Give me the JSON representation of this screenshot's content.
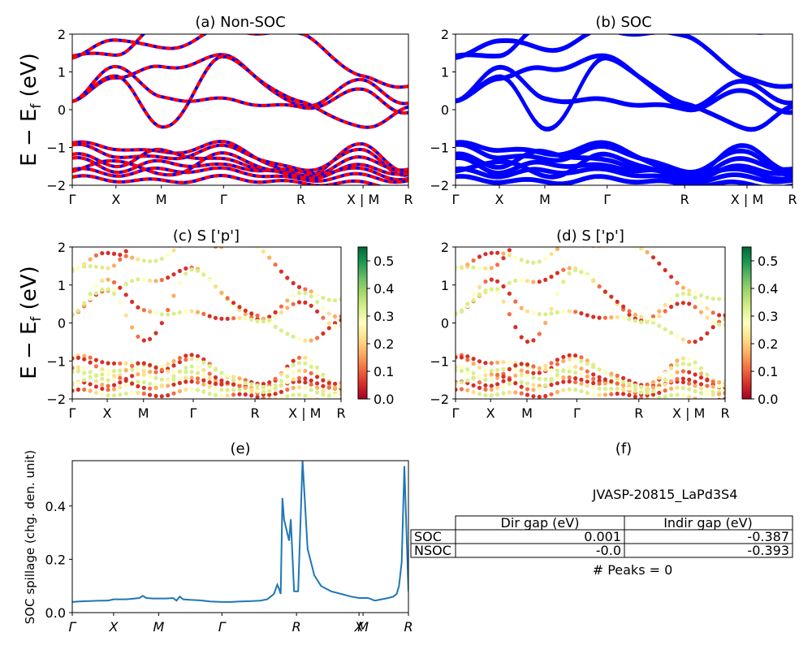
{
  "colors": {
    "nsoc_band": "#ff0000",
    "soc_band": "#0000ff",
    "dash_under": "#0000ff",
    "spillage_line": "#1f77b4",
    "axis": "#000000"
  },
  "ylabel_band": "E − E",
  "ylabel_band_sub": "f",
  "ylabel_band_unit": " (eV)",
  "kpath_labels": [
    "Γ",
    "X",
    "M",
    "Γ",
    "R",
    "X | M",
    "R"
  ],
  "chart_data": [
    {
      "id": "a",
      "type": "line",
      "title": "(a) Non-SOC",
      "ylim": [
        -2,
        2
      ],
      "yticks": [
        "−2",
        "−1",
        "0",
        "1",
        "2"
      ],
      "xticks": [
        "Γ",
        "X",
        "M",
        "Γ",
        "R",
        "X | M",
        "R"
      ],
      "series_color": "#ff0000",
      "style": "dashed-red-over-blue"
    },
    {
      "id": "b",
      "type": "line",
      "title": "(b) SOC",
      "ylim": [
        -2,
        2
      ],
      "yticks": [
        "−2",
        "−1",
        "0",
        "1",
        "2"
      ],
      "xticks": [
        "Γ",
        "X",
        "M",
        "Γ",
        "R",
        "X | M",
        "R"
      ],
      "series_color": "#0000ff",
      "style": "solid"
    },
    {
      "id": "c",
      "type": "scatter",
      "title": "(c)  S ['p']",
      "ylim": [
        -2,
        2
      ],
      "yticks": [
        "−2",
        "−1",
        "0",
        "1",
        "2"
      ],
      "xticks": [
        "Γ",
        "X",
        "M",
        "Γ",
        "R",
        "X | M",
        "R"
      ],
      "colorbar": {
        "range": [
          0.0,
          0.55
        ],
        "ticks": [
          "0.0",
          "0.1",
          "0.2",
          "0.3",
          "0.4",
          "0.5"
        ],
        "colormap": "RdYlGn"
      }
    },
    {
      "id": "d",
      "type": "scatter",
      "title": "(d) S ['p']",
      "ylim": [
        -2,
        2
      ],
      "yticks": [
        "−2",
        "−1",
        "0",
        "1",
        "2"
      ],
      "xticks": [
        "Γ",
        "X",
        "M",
        "Γ",
        "R",
        "X | M",
        "R"
      ],
      "colorbar": {
        "range": [
          0.0,
          0.55
        ],
        "ticks": [
          "0.0",
          "0.1",
          "0.2",
          "0.3",
          "0.4",
          "0.5"
        ],
        "colormap": "RdYlGn"
      }
    },
    {
      "id": "e",
      "type": "line",
      "title": "(e)",
      "ylabel": "SOC spillage (chg. den. unit)",
      "ylim": [
        0,
        0.57
      ],
      "yticks": [
        "0.0",
        "0.2",
        "0.4"
      ],
      "xticks": [
        "Γ",
        "X",
        "M",
        "Γ",
        "R",
        "X",
        "M",
        "R"
      ],
      "tick_positions": [
        0,
        0.123,
        0.257,
        0.445,
        0.667,
        0.853,
        0.865,
        1.0
      ],
      "x": [
        0,
        0.02,
        0.04,
        0.06,
        0.08,
        0.1,
        0.11,
        0.123,
        0.14,
        0.16,
        0.18,
        0.2,
        0.21,
        0.22,
        0.24,
        0.257,
        0.28,
        0.3,
        0.31,
        0.32,
        0.33,
        0.35,
        0.38,
        0.41,
        0.445,
        0.47,
        0.5,
        0.53,
        0.56,
        0.58,
        0.59,
        0.6,
        0.61,
        0.615,
        0.62,
        0.625,
        0.63,
        0.645,
        0.65,
        0.66,
        0.667,
        0.672,
        0.685,
        0.7,
        0.72,
        0.74,
        0.77,
        0.8,
        0.83,
        0.853,
        0.865,
        0.88,
        0.9,
        0.92,
        0.94,
        0.955,
        0.965,
        0.972,
        0.98,
        0.988,
        1.0
      ],
      "values": [
        0.04,
        0.042,
        0.043,
        0.044,
        0.045,
        0.045,
        0.046,
        0.05,
        0.05,
        0.05,
        0.052,
        0.055,
        0.063,
        0.055,
        0.053,
        0.053,
        0.053,
        0.055,
        0.045,
        0.06,
        0.05,
        0.048,
        0.046,
        0.042,
        0.04,
        0.04,
        0.042,
        0.043,
        0.045,
        0.05,
        0.06,
        0.07,
        0.105,
        0.09,
        0.07,
        0.43,
        0.35,
        0.27,
        0.35,
        0.08,
        0.08,
        0.08,
        0.57,
        0.24,
        0.14,
        0.1,
        0.08,
        0.07,
        0.06,
        0.055,
        0.055,
        0.055,
        0.045,
        0.05,
        0.055,
        0.06,
        0.07,
        0.1,
        0.19,
        0.55,
        0.08
      ]
    },
    {
      "id": "f",
      "type": "table",
      "title": "(f)",
      "caption": "JVASP-20815_LaPd3S4",
      "columns": [
        "Dir gap (eV)",
        "Indir gap (eV)"
      ],
      "rows": [
        {
          "label": "SOC",
          "dir": "0.001",
          "indir": "-0.387"
        },
        {
          "label": "NSOC",
          "dir": "-0.0",
          "indir": "-0.393"
        }
      ],
      "footer": "# Peaks = 0"
    }
  ]
}
